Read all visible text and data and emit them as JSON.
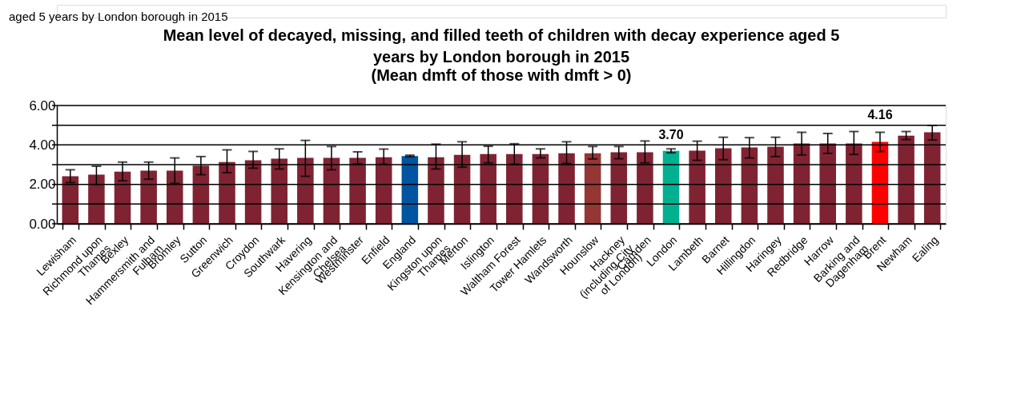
{
  "chart_data": {
    "type": "bar",
    "title": "Mean level of decayed, missing, and filled teeth of children with decay experience aged 5 years by London borough in 2015",
    "subtitle": "(Mean dmft of those with dmft > 0)",
    "annotations": [
      "aged 5 years by London borough in 2015"
    ],
    "categories": [
      "Lewisham",
      "Richmond upon Thames",
      "Bexley",
      "Hammersmith and Fulham",
      "Bromley",
      "Sutton",
      "Greenwich",
      "Croydon",
      "Southwark",
      "Havering",
      "Kensington and Chelsea",
      "Westminster",
      "Enfield",
      "England",
      "Kingston upon Thames",
      "Merton",
      "Islington",
      "Waltham Forest",
      "Tower Hamlets",
      "Wandsworth",
      "Hounslow",
      "Hackney (including City of London)",
      "Camden",
      "London",
      "Lambeth",
      "Barnet",
      "Hillingdon",
      "Haringey",
      "Redbridge",
      "Harrow",
      "Barking and Dagenham",
      "Brent",
      "Newham",
      "Ealing"
    ],
    "values": [
      2.41,
      2.49,
      2.65,
      2.7,
      2.7,
      2.95,
      3.13,
      3.22,
      3.3,
      3.34,
      3.34,
      3.34,
      3.38,
      3.44,
      3.38,
      3.5,
      3.54,
      3.54,
      3.54,
      3.58,
      3.58,
      3.63,
      3.63,
      3.7,
      3.71,
      3.83,
      3.87,
      3.91,
      4.07,
      4.07,
      4.07,
      4.16,
      4.47,
      4.64
    ],
    "errors": [
      [
        2.09,
        2.74
      ],
      [
        1.99,
        2.92
      ],
      [
        2.18,
        3.13
      ],
      [
        2.26,
        3.13
      ],
      [
        2.05,
        3.34
      ],
      [
        2.49,
        3.41
      ],
      [
        2.59,
        3.75
      ],
      [
        2.82,
        3.67
      ],
      [
        2.78,
        3.8
      ],
      [
        2.41,
        4.23
      ],
      [
        2.74,
        3.92
      ],
      [
        3.03,
        3.65
      ],
      [
        3.02,
        3.79
      ],
      [
        3.4,
        3.48
      ],
      [
        2.78,
        4.04
      ],
      [
        2.87,
        4.16
      ],
      [
        3.09,
        3.93
      ],
      [
        3.02,
        4.06
      ],
      [
        3.34,
        3.8
      ],
      [
        3.06,
        4.16
      ],
      [
        3.29,
        3.92
      ],
      [
        3.3,
        3.92
      ],
      [
        3.09,
        4.2
      ],
      [
        3.6,
        3.8
      ],
      [
        3.22,
        4.19
      ],
      [
        3.25,
        4.39
      ],
      [
        3.34,
        4.37
      ],
      [
        3.41,
        4.39
      ],
      [
        3.49,
        4.64
      ],
      [
        3.57,
        4.58
      ],
      [
        3.52,
        4.68
      ],
      [
        3.67,
        4.64
      ],
      [
        4.27,
        4.68
      ],
      [
        4.25,
        4.99
      ]
    ],
    "colors": [
      "#7f2333",
      "#7f2333",
      "#7f2333",
      "#7f2333",
      "#7f2333",
      "#7f2333",
      "#7f2333",
      "#7f2333",
      "#7f2333",
      "#7f2333",
      "#7f2333",
      "#7f2333",
      "#7f2333",
      "#0054a0",
      "#7f2333",
      "#7f2333",
      "#7f2333",
      "#7f2333",
      "#7f2333",
      "#7f2333",
      "#943634",
      "#7f2333",
      "#7f2333",
      "#00b08f",
      "#7f2333",
      "#7f2333",
      "#7f2333",
      "#7f2333",
      "#7f2333",
      "#7f2333",
      "#7f2333",
      "#ff0000",
      "#7f2333",
      "#7f2333"
    ],
    "value_labels": [
      null,
      null,
      null,
      null,
      null,
      null,
      null,
      null,
      null,
      null,
      null,
      null,
      null,
      null,
      null,
      null,
      null,
      null,
      null,
      null,
      null,
      null,
      null,
      "3.70",
      null,
      null,
      null,
      null,
      null,
      null,
      null,
      "4.16",
      null,
      null
    ],
    "ylim": [
      0,
      6
    ],
    "yticks": [
      {
        "value": 0,
        "label": "0.00"
      },
      {
        "value": 1,
        "label": null
      },
      {
        "value": 2,
        "label": "2.00"
      },
      {
        "value": 3,
        "label": null
      },
      {
        "value": 4,
        "label": "4.00"
      },
      {
        "value": 5,
        "label": null
      },
      {
        "value": 6,
        "label": "6.00"
      }
    ],
    "grid": "y",
    "legend": false
  }
}
